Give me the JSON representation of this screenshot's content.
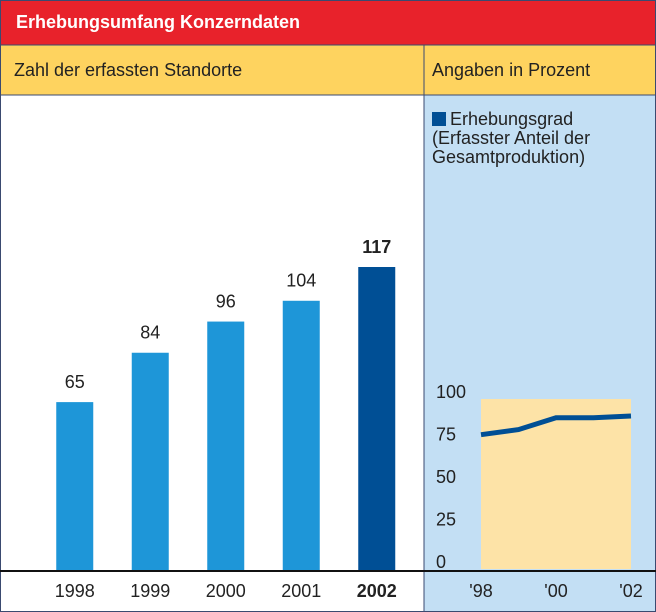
{
  "title": "Erhebungsumfang Konzerndaten",
  "chart_data": [
    {
      "type": "bar",
      "title": "Zahl der erfassten Standorte",
      "categories": [
        "1998",
        "1999",
        "2000",
        "2001",
        "2002"
      ],
      "values": [
        65,
        84,
        96,
        104,
        117
      ],
      "colors": [
        "#1e96d8",
        "#1e96d8",
        "#1e96d8",
        "#1e96d8",
        "#004f95"
      ]
    },
    {
      "type": "line",
      "title": "Angaben in Prozent",
      "categories": [
        "'98",
        null,
        "'00",
        null,
        "'02"
      ],
      "series": [
        {
          "name": "Erhebungsgrad (Erfasster Anteil der Gesamtproduktion)",
          "color": "#004f95",
          "values": [
            79,
            82,
            89,
            89,
            90
          ]
        }
      ],
      "ylim": [
        0,
        100
      ],
      "yticks": [
        0,
        25,
        50,
        75,
        100
      ],
      "plot_background": "#fde3a7"
    }
  ]
}
